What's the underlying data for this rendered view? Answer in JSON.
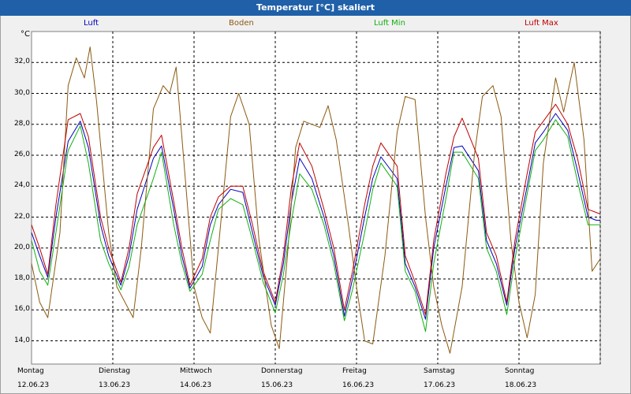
{
  "window": {
    "title": "Temperatur [°C] skaliert"
  },
  "legend": [
    {
      "label": "Luft",
      "color": "#0000c0"
    },
    {
      "label": "Boden",
      "color": "#8b5a10"
    },
    {
      "label": "Luft Min",
      "color": "#10b010"
    },
    {
      "label": "Luft Max",
      "color": "#c00000"
    }
  ],
  "chart_data": {
    "type": "line",
    "title": "Temperatur [°C] skaliert",
    "ylabel": "°C",
    "ylim": [
      12.5,
      34.0
    ],
    "xlim": [
      0,
      7
    ],
    "y_ticks": [
      "14,0",
      "16,0",
      "18,0",
      "20,0",
      "22,0",
      "24,0",
      "26,0",
      "28,0",
      "30,0",
      "32,0"
    ],
    "x_days": [
      "Montag",
      "Dienstag",
      "Mittwoch",
      "Donnerstag",
      "Freitag",
      "Samstag",
      "Sonntag"
    ],
    "x_dates": [
      "12.06.23",
      "13.06.23",
      "14.06.23",
      "15.06.23",
      "16.06.23",
      "17.06.23",
      "18.06.23"
    ],
    "grid": true,
    "legend_position": "top",
    "series": [
      {
        "name": "Luft",
        "color": "#0000c0",
        "x": [
          0,
          0.1,
          0.2,
          0.3,
          0.45,
          0.6,
          0.7,
          0.85,
          0.95,
          1.1,
          1.2,
          1.3,
          1.5,
          1.6,
          1.75,
          1.85,
          1.95,
          2.1,
          2.2,
          2.3,
          2.45,
          2.6,
          2.72,
          2.85,
          3.0,
          3.1,
          3.2,
          3.3,
          3.45,
          3.6,
          3.72,
          3.85,
          3.95,
          4.1,
          4.2,
          4.3,
          4.5,
          4.6,
          4.72,
          4.85,
          4.95,
          5.1,
          5.2,
          5.3,
          5.5,
          5.6,
          5.72,
          5.85,
          5.95,
          6.1,
          6.2,
          6.3,
          6.45,
          6.6,
          6.72,
          6.85,
          6.95,
          7.0
        ],
        "y": [
          21.0,
          19.5,
          18.1,
          22.0,
          26.9,
          28.2,
          26.5,
          21.5,
          19.5,
          17.6,
          19.5,
          22.5,
          25.8,
          26.6,
          22.5,
          19.5,
          17.4,
          18.8,
          21.5,
          22.8,
          23.8,
          23.6,
          21.0,
          18.2,
          16.3,
          19.0,
          23.0,
          25.8,
          24.5,
          22.0,
          19.5,
          15.6,
          18.0,
          22.0,
          24.5,
          25.9,
          24.5,
          19.0,
          17.5,
          15.4,
          20.0,
          24.0,
          26.5,
          26.6,
          25.0,
          20.5,
          19.0,
          16.3,
          20.0,
          24.0,
          26.8,
          27.5,
          28.7,
          27.6,
          25.0,
          22.0,
          21.8,
          21.8
        ]
      },
      {
        "name": "Boden",
        "color": "#8b5a10",
        "x": [
          0,
          0.1,
          0.2,
          0.35,
          0.45,
          0.55,
          0.65,
          0.72,
          0.8,
          0.95,
          1.05,
          1.15,
          1.25,
          1.35,
          1.5,
          1.62,
          1.7,
          1.78,
          1.9,
          2.0,
          2.1,
          2.2,
          2.3,
          2.45,
          2.55,
          2.68,
          2.8,
          2.95,
          3.05,
          3.15,
          3.25,
          3.35,
          3.55,
          3.65,
          3.75,
          3.9,
          4.0,
          4.1,
          4.2,
          4.35,
          4.5,
          4.6,
          4.72,
          4.85,
          4.95,
          5.05,
          5.15,
          5.3,
          5.45,
          5.55,
          5.68,
          5.78,
          5.9,
          6.0,
          6.1,
          6.2,
          6.3,
          6.45,
          6.55,
          6.68,
          6.8,
          6.9,
          7.0
        ],
        "y": [
          19.0,
          16.5,
          15.5,
          21.0,
          30.5,
          32.3,
          31.0,
          33.0,
          29.5,
          21.0,
          17.5,
          16.5,
          15.5,
          20.0,
          29.0,
          30.5,
          30.0,
          31.7,
          24.0,
          17.5,
          15.5,
          14.5,
          20.0,
          28.5,
          30.0,
          28.0,
          20.5,
          15.0,
          13.5,
          19.5,
          26.5,
          28.2,
          27.8,
          29.2,
          27.0,
          21.5,
          17.5,
          14.0,
          13.8,
          19.5,
          27.5,
          29.8,
          29.6,
          22.0,
          17.5,
          15.0,
          13.2,
          17.5,
          26.0,
          29.8,
          30.5,
          28.5,
          20.5,
          16.5,
          14.2,
          17.0,
          25.5,
          31.0,
          28.8,
          32.0,
          27.0,
          18.5,
          19.3
        ]
      },
      {
        "name": "Luft Min",
        "color": "#10b010",
        "x": [
          0,
          0.1,
          0.2,
          0.3,
          0.45,
          0.6,
          0.7,
          0.85,
          0.95,
          1.1,
          1.2,
          1.3,
          1.5,
          1.6,
          1.75,
          1.85,
          1.95,
          2.1,
          2.2,
          2.3,
          2.45,
          2.6,
          2.72,
          2.85,
          3.0,
          3.1,
          3.2,
          3.3,
          3.45,
          3.6,
          3.72,
          3.85,
          3.95,
          4.1,
          4.2,
          4.3,
          4.5,
          4.6,
          4.72,
          4.85,
          4.95,
          5.1,
          5.2,
          5.3,
          5.5,
          5.6,
          5.72,
          5.85,
          5.95,
          6.1,
          6.2,
          6.3,
          6.45,
          6.6,
          6.72,
          6.85,
          6.95,
          7.0
        ],
        "y": [
          20.5,
          18.5,
          17.6,
          21.0,
          26.3,
          27.9,
          25.5,
          20.5,
          19.0,
          17.3,
          18.8,
          21.5,
          24.5,
          26.2,
          21.5,
          19.0,
          17.2,
          18.3,
          20.5,
          22.5,
          23.2,
          22.8,
          20.5,
          17.8,
          15.8,
          18.3,
          21.8,
          24.8,
          23.8,
          21.5,
          19.0,
          15.3,
          17.3,
          21.0,
          23.8,
          25.5,
          24.0,
          18.5,
          17.2,
          14.6,
          19.0,
          23.2,
          26.2,
          26.2,
          24.5,
          20.0,
          18.5,
          15.7,
          19.3,
          23.5,
          26.3,
          27.0,
          28.3,
          27.2,
          24.3,
          21.5,
          21.5,
          21.5
        ]
      },
      {
        "name": "Luft Max",
        "color": "#c00000",
        "x": [
          0,
          0.1,
          0.2,
          0.3,
          0.45,
          0.6,
          0.7,
          0.85,
          0.95,
          1.1,
          1.2,
          1.3,
          1.5,
          1.6,
          1.75,
          1.85,
          1.95,
          2.1,
          2.2,
          2.3,
          2.45,
          2.6,
          2.72,
          2.85,
          3.0,
          3.1,
          3.2,
          3.3,
          3.45,
          3.6,
          3.72,
          3.85,
          3.95,
          4.1,
          4.2,
          4.3,
          4.5,
          4.6,
          4.72,
          4.85,
          4.95,
          5.1,
          5.2,
          5.3,
          5.5,
          5.6,
          5.72,
          5.85,
          5.95,
          6.1,
          6.2,
          6.3,
          6.45,
          6.6,
          6.72,
          6.85,
          6.95,
          7.0
        ],
        "y": [
          21.5,
          20.0,
          18.3,
          22.8,
          28.3,
          28.7,
          27.2,
          22.0,
          20.0,
          17.8,
          20.0,
          23.5,
          26.5,
          27.3,
          23.0,
          20.0,
          17.6,
          19.3,
          22.0,
          23.3,
          24.0,
          24.0,
          21.5,
          18.5,
          16.5,
          19.5,
          24.0,
          26.8,
          25.3,
          22.5,
          20.0,
          16.0,
          18.5,
          22.8,
          25.3,
          26.8,
          25.3,
          19.5,
          17.8,
          15.7,
          20.5,
          24.8,
          27.2,
          28.4,
          25.8,
          21.0,
          19.5,
          16.5,
          20.5,
          24.8,
          27.5,
          28.2,
          29.3,
          28.0,
          25.8,
          22.5,
          22.3,
          22.2
        ]
      }
    ]
  }
}
